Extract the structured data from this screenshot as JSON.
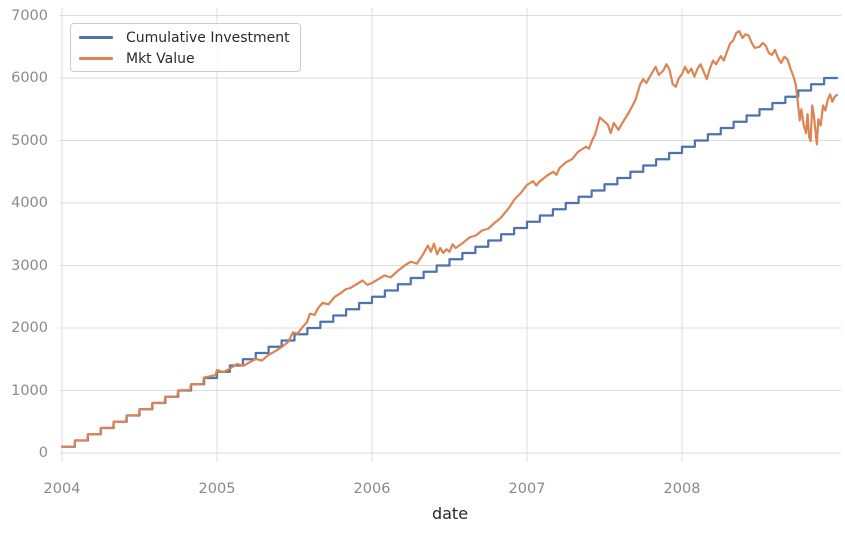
{
  "figure": {
    "background_color": "#ffffff",
    "tick_color": "#8a8a8a",
    "axis_label_color": "#262626",
    "grid_color": "#dcdcdc",
    "legend_border_color": "#cccccc"
  },
  "chart_data": {
    "type": "line",
    "title": "",
    "xlabel": "date",
    "ylabel": "",
    "grid": true,
    "legend_position": "upper left",
    "xlim": [
      2003.98,
      2009.03
    ],
    "ylim": [
      0,
      7000
    ],
    "xticks": [
      2004,
      2005,
      2006,
      2007,
      2008
    ],
    "yticks": [
      0,
      1000,
      2000,
      3000,
      4000,
      5000,
      6000,
      7000
    ],
    "series": [
      {
        "name": "Cumulative Investment",
        "color": "#4c72b0",
        "style": "step-post",
        "points": [
          [
            2004.0,
            100
          ],
          [
            2004.083,
            200
          ],
          [
            2004.167,
            300
          ],
          [
            2004.25,
            400
          ],
          [
            2004.333,
            500
          ],
          [
            2004.417,
            600
          ],
          [
            2004.5,
            700
          ],
          [
            2004.583,
            800
          ],
          [
            2004.667,
            900
          ],
          [
            2004.75,
            1000
          ],
          [
            2004.833,
            1100
          ],
          [
            2004.917,
            1200
          ],
          [
            2005.0,
            1300
          ],
          [
            2005.083,
            1400
          ],
          [
            2005.167,
            1500
          ],
          [
            2005.25,
            1600
          ],
          [
            2005.333,
            1700
          ],
          [
            2005.417,
            1800
          ],
          [
            2005.5,
            1900
          ],
          [
            2005.583,
            2000
          ],
          [
            2005.667,
            2100
          ],
          [
            2005.75,
            2200
          ],
          [
            2005.833,
            2300
          ],
          [
            2005.917,
            2400
          ],
          [
            2006.0,
            2500
          ],
          [
            2006.083,
            2600
          ],
          [
            2006.167,
            2700
          ],
          [
            2006.25,
            2800
          ],
          [
            2006.333,
            2900
          ],
          [
            2006.417,
            3000
          ],
          [
            2006.5,
            3100
          ],
          [
            2006.583,
            3200
          ],
          [
            2006.667,
            3300
          ],
          [
            2006.75,
            3400
          ],
          [
            2006.833,
            3500
          ],
          [
            2006.917,
            3600
          ],
          [
            2007.0,
            3700
          ],
          [
            2007.083,
            3800
          ],
          [
            2007.167,
            3900
          ],
          [
            2007.25,
            4000
          ],
          [
            2007.333,
            4100
          ],
          [
            2007.417,
            4200
          ],
          [
            2007.5,
            4300
          ],
          [
            2007.583,
            4400
          ],
          [
            2007.667,
            4500
          ],
          [
            2007.75,
            4600
          ],
          [
            2007.833,
            4700
          ],
          [
            2007.917,
            4800
          ],
          [
            2008.0,
            4900
          ],
          [
            2008.083,
            5000
          ],
          [
            2008.167,
            5100
          ],
          [
            2008.25,
            5200
          ],
          [
            2008.333,
            5300
          ],
          [
            2008.417,
            5400
          ],
          [
            2008.5,
            5500
          ],
          [
            2008.583,
            5600
          ],
          [
            2008.667,
            5700
          ],
          [
            2008.75,
            5800
          ],
          [
            2008.833,
            5900
          ],
          [
            2008.917,
            6000
          ],
          [
            2009.0,
            6000
          ]
        ]
      },
      {
        "name": "Mkt Value",
        "color": "#dd8452",
        "style": "line",
        "points": [
          [
            2004.0,
            100
          ],
          [
            2004.08,
            103
          ],
          [
            2004.085,
            200
          ],
          [
            2004.163,
            203
          ],
          [
            2004.168,
            300
          ],
          [
            2004.246,
            299
          ],
          [
            2004.251,
            400
          ],
          [
            2004.329,
            404
          ],
          [
            2004.334,
            498
          ],
          [
            2004.412,
            497
          ],
          [
            2004.417,
            601
          ],
          [
            2004.495,
            606
          ],
          [
            2004.5,
            699
          ],
          [
            2004.578,
            697
          ],
          [
            2004.583,
            801
          ],
          [
            2004.661,
            804
          ],
          [
            2004.666,
            899
          ],
          [
            2004.744,
            903
          ],
          [
            2004.749,
            1001
          ],
          [
            2004.827,
            1009
          ],
          [
            2004.832,
            1101
          ],
          [
            2004.91,
            1097
          ],
          [
            2004.915,
            1206
          ],
          [
            2004.99,
            1245
          ],
          [
            2005.0,
            1330
          ],
          [
            2005.04,
            1295
          ],
          [
            2005.08,
            1345
          ],
          [
            2005.13,
            1425
          ],
          [
            2005.17,
            1395
          ],
          [
            2005.21,
            1450
          ],
          [
            2005.25,
            1505
          ],
          [
            2005.29,
            1480
          ],
          [
            2005.33,
            1565
          ],
          [
            2005.38,
            1635
          ],
          [
            2005.42,
            1700
          ],
          [
            2005.46,
            1780
          ],
          [
            2005.49,
            1930
          ],
          [
            2005.52,
            1910
          ],
          [
            2005.55,
            2010
          ],
          [
            2005.58,
            2090
          ],
          [
            2005.6,
            2230
          ],
          [
            2005.63,
            2210
          ],
          [
            2005.65,
            2310
          ],
          [
            2005.68,
            2400
          ],
          [
            2005.72,
            2380
          ],
          [
            2005.76,
            2500
          ],
          [
            2005.8,
            2560
          ],
          [
            2005.83,
            2620
          ],
          [
            2005.86,
            2640
          ],
          [
            2005.9,
            2700
          ],
          [
            2005.94,
            2760
          ],
          [
            2005.97,
            2690
          ],
          [
            2006.0,
            2720
          ],
          [
            2006.04,
            2780
          ],
          [
            2006.08,
            2840
          ],
          [
            2006.12,
            2810
          ],
          [
            2006.17,
            2920
          ],
          [
            2006.21,
            3000
          ],
          [
            2006.25,
            3060
          ],
          [
            2006.29,
            3030
          ],
          [
            2006.33,
            3180
          ],
          [
            2006.36,
            3320
          ],
          [
            2006.38,
            3220
          ],
          [
            2006.4,
            3350
          ],
          [
            2006.42,
            3180
          ],
          [
            2006.44,
            3280
          ],
          [
            2006.46,
            3200
          ],
          [
            2006.48,
            3260
          ],
          [
            2006.5,
            3220
          ],
          [
            2006.52,
            3340
          ],
          [
            2006.54,
            3280
          ],
          [
            2006.58,
            3350
          ],
          [
            2006.63,
            3450
          ],
          [
            2006.67,
            3480
          ],
          [
            2006.71,
            3560
          ],
          [
            2006.75,
            3590
          ],
          [
            2006.79,
            3680
          ],
          [
            2006.83,
            3760
          ],
          [
            2006.88,
            3910
          ],
          [
            2006.92,
            4060
          ],
          [
            2006.96,
            4160
          ],
          [
            2007.0,
            4290
          ],
          [
            2007.04,
            4350
          ],
          [
            2007.06,
            4280
          ],
          [
            2007.08,
            4340
          ],
          [
            2007.13,
            4440
          ],
          [
            2007.17,
            4500
          ],
          [
            2007.19,
            4450
          ],
          [
            2007.21,
            4560
          ],
          [
            2007.25,
            4650
          ],
          [
            2007.29,
            4700
          ],
          [
            2007.33,
            4820
          ],
          [
            2007.38,
            4900
          ],
          [
            2007.4,
            4870
          ],
          [
            2007.42,
            5000
          ],
          [
            2007.44,
            5100
          ],
          [
            2007.47,
            5370
          ],
          [
            2007.5,
            5300
          ],
          [
            2007.52,
            5260
          ],
          [
            2007.54,
            5120
          ],
          [
            2007.56,
            5280
          ],
          [
            2007.59,
            5170
          ],
          [
            2007.62,
            5300
          ],
          [
            2007.66,
            5460
          ],
          [
            2007.7,
            5650
          ],
          [
            2007.73,
            5900
          ],
          [
            2007.75,
            5980
          ],
          [
            2007.77,
            5920
          ],
          [
            2007.79,
            6010
          ],
          [
            2007.83,
            6180
          ],
          [
            2007.85,
            6050
          ],
          [
            2007.88,
            6120
          ],
          [
            2007.9,
            6220
          ],
          [
            2007.92,
            6130
          ],
          [
            2007.94,
            5900
          ],
          [
            2007.96,
            5860
          ],
          [
            2007.98,
            6000
          ],
          [
            2008.0,
            6060
          ],
          [
            2008.02,
            6180
          ],
          [
            2008.04,
            6080
          ],
          [
            2008.06,
            6150
          ],
          [
            2008.08,
            6020
          ],
          [
            2008.1,
            6150
          ],
          [
            2008.12,
            6220
          ],
          [
            2008.14,
            6100
          ],
          [
            2008.16,
            5980
          ],
          [
            2008.18,
            6150
          ],
          [
            2008.2,
            6280
          ],
          [
            2008.22,
            6220
          ],
          [
            2008.25,
            6350
          ],
          [
            2008.27,
            6280
          ],
          [
            2008.29,
            6420
          ],
          [
            2008.31,
            6550
          ],
          [
            2008.33,
            6600
          ],
          [
            2008.35,
            6720
          ],
          [
            2008.37,
            6750
          ],
          [
            2008.39,
            6640
          ],
          [
            2008.41,
            6700
          ],
          [
            2008.43,
            6680
          ],
          [
            2008.45,
            6560
          ],
          [
            2008.47,
            6480
          ],
          [
            2008.5,
            6500
          ],
          [
            2008.52,
            6560
          ],
          [
            2008.54,
            6520
          ],
          [
            2008.56,
            6400
          ],
          [
            2008.58,
            6370
          ],
          [
            2008.6,
            6450
          ],
          [
            2008.62,
            6320
          ],
          [
            2008.64,
            6240
          ],
          [
            2008.66,
            6340
          ],
          [
            2008.68,
            6300
          ],
          [
            2008.7,
            6150
          ],
          [
            2008.72,
            6020
          ],
          [
            2008.735,
            5880
          ],
          [
            2008.75,
            5550
          ],
          [
            2008.76,
            5320
          ],
          [
            2008.77,
            5500
          ],
          [
            2008.785,
            5250
          ],
          [
            2008.8,
            5120
          ],
          [
            2008.81,
            5420
          ],
          [
            2008.82,
            5060
          ],
          [
            2008.83,
            4990
          ],
          [
            2008.84,
            5560
          ],
          [
            2008.85,
            5420
          ],
          [
            2008.86,
            5180
          ],
          [
            2008.87,
            4940
          ],
          [
            2008.88,
            5340
          ],
          [
            2008.895,
            5240
          ],
          [
            2008.91,
            5560
          ],
          [
            2008.925,
            5480
          ],
          [
            2008.94,
            5650
          ],
          [
            2008.955,
            5740
          ],
          [
            2008.97,
            5620
          ],
          [
            2008.985,
            5700
          ],
          [
            2009.0,
            5730
          ]
        ]
      }
    ]
  }
}
